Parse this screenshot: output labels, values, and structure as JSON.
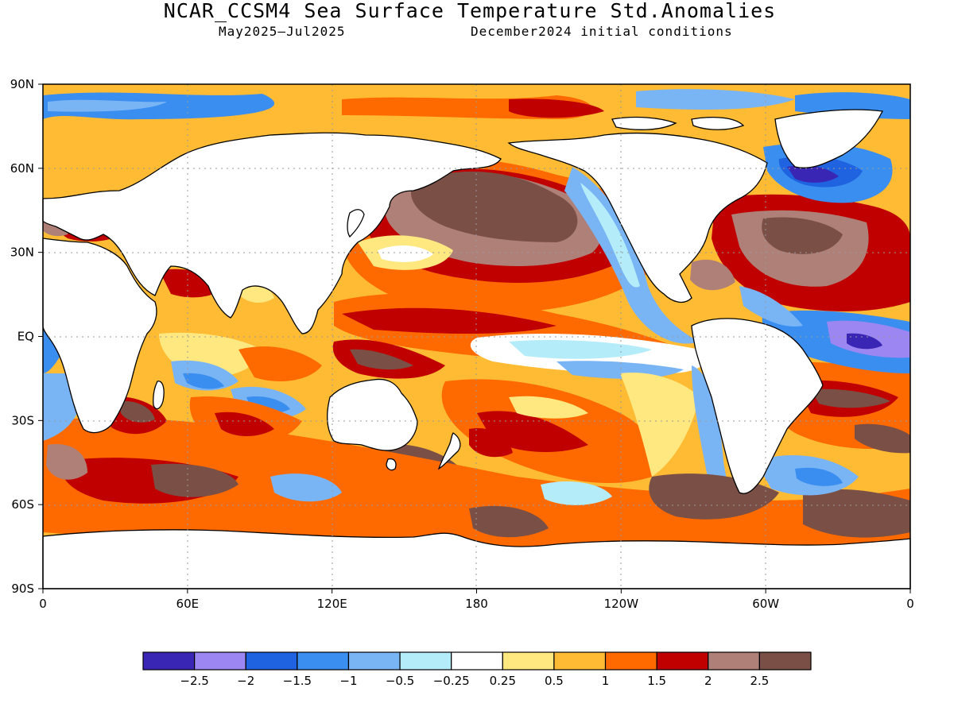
{
  "header": {
    "title": "NCAR_CCSM4 Sea Surface Temperature Std.Anomalies",
    "period": "May2025–Jul2025",
    "init": "December2024 initial conditions"
  },
  "axes": {
    "lat_labels": [
      "90N",
      "60N",
      "30N",
      "EQ",
      "30S",
      "60S",
      "90S"
    ],
    "lat_values": [
      90,
      60,
      30,
      0,
      -30,
      -60,
      -90
    ],
    "lon_labels": [
      "0",
      "60E",
      "120E",
      "180",
      "120W",
      "60W",
      "0"
    ],
    "lon_values": [
      0,
      60,
      120,
      180,
      240,
      300,
      360
    ]
  },
  "colorbar": {
    "colors": [
      "#3a26b4",
      "#9b86f2",
      "#1f63e0",
      "#3a8ef0",
      "#79b4f5",
      "#b4ecfa",
      "#ffffff",
      "#ffe880",
      "#ffbb33",
      "#ff6a00",
      "#c00000",
      "#ae8078",
      "#7a4f45"
    ],
    "tick_labels": [
      "−2.5",
      "−2",
      "−1.5",
      "−1",
      "−0.5",
      "−0.25",
      "0.25",
      "0.5",
      "1",
      "1.5",
      "2",
      "2.5"
    ]
  },
  "map": {
    "land_color": "#ffffff",
    "coast_color": "#000000"
  }
}
